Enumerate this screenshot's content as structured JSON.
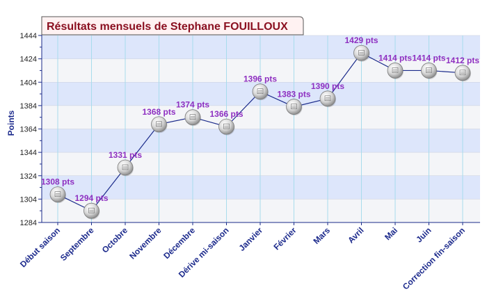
{
  "chart_data": {
    "type": "line",
    "title": "Résultats mensuels de Stephane FOUILLOUX",
    "ylabel": "Points",
    "xlabel": "",
    "ylim": [
      1284,
      1444
    ],
    "yticks": [
      1284,
      1304,
      1324,
      1344,
      1364,
      1384,
      1404,
      1424,
      1444
    ],
    "categories": [
      "Début saison",
      "Septembre",
      "Octobre",
      "Novembre",
      "Décembre",
      "Dérive mi-saison",
      "Janvier",
      "Février",
      "Mars",
      "Avril",
      "Mai",
      "Juin",
      "Correction fin-saison"
    ],
    "values": [
      1308,
      1294,
      1331,
      1368,
      1374,
      1366,
      1396,
      1383,
      1390,
      1429,
      1414,
      1414,
      1412
    ],
    "labels": [
      "1308 pts",
      "1294 pts",
      "1331 pts",
      "1368 pts",
      "1374 pts",
      "1366 pts",
      "1396 pts",
      "1383 pts",
      "1390 pts",
      "1429 pts",
      "1414 pts",
      "1414 pts",
      "1412 pts"
    ],
    "grid": true,
    "colors": {
      "band_light": "#f4f5f8",
      "band_blue": "#dde6fb",
      "line": "#1a2a8a",
      "label": "#8e2fc1",
      "tick": "#1c2a8c",
      "title": "#8a1020",
      "title_bg": "#fff2f2",
      "vgrid": "#a8dcec"
    }
  }
}
